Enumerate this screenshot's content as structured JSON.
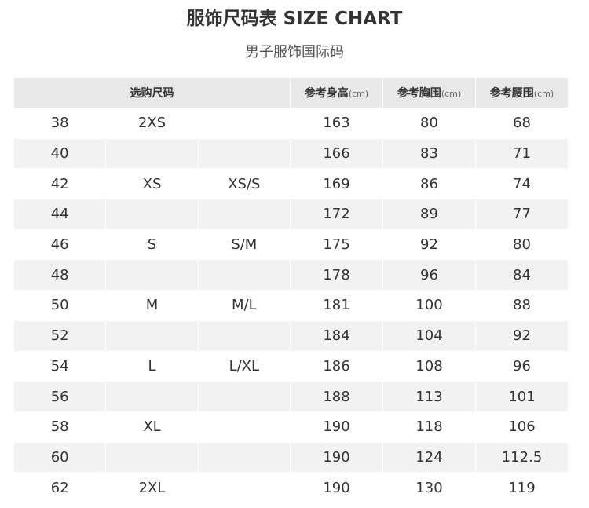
{
  "title": "服饰尺码表 SIZE CHART",
  "subtitle": "男子服饰国际码",
  "headers": {
    "size": "选购尺码",
    "height": "参考身高",
    "chest": "参考胸围",
    "waist": "参考腰围",
    "unit": "(cm)"
  },
  "rows": [
    [
      "38",
      "2XS",
      "",
      "163",
      "80",
      "68"
    ],
    [
      "40",
      "",
      "",
      "166",
      "83",
      "71"
    ],
    [
      "42",
      "XS",
      "XS/S",
      "169",
      "86",
      "74"
    ],
    [
      "44",
      "",
      "",
      "172",
      "89",
      "77"
    ],
    [
      "46",
      "S",
      "S/M",
      "175",
      "92",
      "80"
    ],
    [
      "48",
      "",
      "",
      "178",
      "96",
      "84"
    ],
    [
      "50",
      "M",
      "M/L",
      "181",
      "100",
      "88"
    ],
    [
      "52",
      "",
      "",
      "184",
      "104",
      "92"
    ],
    [
      "54",
      "L",
      "L/XL",
      "186",
      "108",
      "96"
    ],
    [
      "56",
      "",
      "",
      "188",
      "113",
      "101"
    ],
    [
      "58",
      "XL",
      "",
      "190",
      "118",
      "106"
    ],
    [
      "60",
      "",
      "",
      "190",
      "124",
      "112.5"
    ],
    [
      "62",
      "2XL",
      "",
      "190",
      "130",
      "119"
    ]
  ]
}
